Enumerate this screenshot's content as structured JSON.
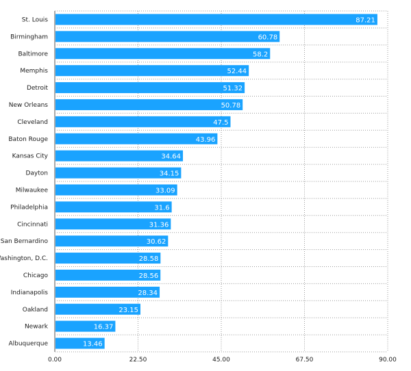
{
  "chart_data": {
    "type": "bar",
    "orientation": "horizontal",
    "categories": [
      "St. Louis",
      "Birmingham",
      "Baltimore",
      "Memphis",
      "Detroit",
      "New Orleans",
      "Cleveland",
      "Baton Rouge",
      "Kansas City",
      "Dayton",
      "Milwaukee",
      "Philadelphia",
      "Cincinnati",
      "San Bernardino",
      "Washington, D.C.",
      "Chicago",
      "Indianapolis",
      "Oakland",
      "Newark",
      "Albuquerque"
    ],
    "values": [
      87.21,
      60.78,
      58.2,
      52.44,
      51.32,
      50.78,
      47.5,
      43.96,
      34.64,
      34.15,
      33.09,
      31.6,
      31.36,
      30.62,
      28.58,
      28.56,
      28.34,
      23.15,
      16.37,
      13.46
    ],
    "value_labels": [
      "87.21",
      "60.78",
      "58.2",
      "52.44",
      "51.32",
      "50.78",
      "47.5",
      "43.96",
      "34.64",
      "34.15",
      "33.09",
      "31.6",
      "31.36",
      "30.62",
      "28.58",
      "28.56",
      "28.34",
      "23.15",
      "16.37",
      "13.46"
    ],
    "xlim": [
      0,
      90
    ],
    "x_ticks": [
      0,
      22.5,
      45,
      67.5,
      90
    ],
    "x_tick_labels": [
      "0.00",
      "22.50",
      "45.00",
      "67.50",
      "90.00"
    ],
    "title": "",
    "xlabel": "",
    "ylabel": "",
    "grid": true,
    "legend": "none",
    "bar_color": "#1aa3ff",
    "grid_color": "#9a9a9a"
  }
}
